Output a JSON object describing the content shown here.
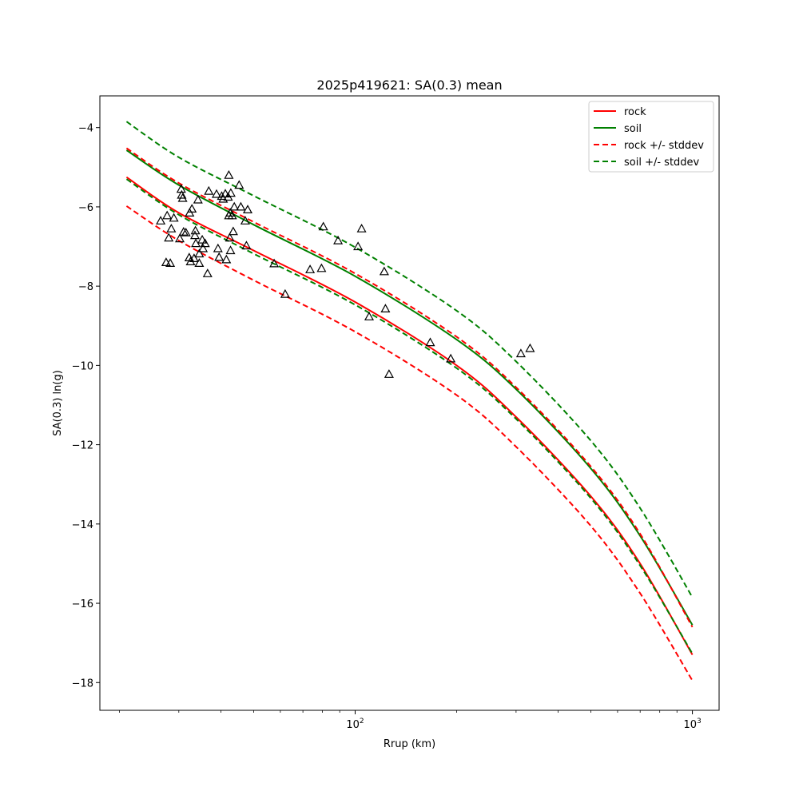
{
  "chart_data": {
    "type": "line",
    "title": "2025p419621: SA(0.3) mean",
    "xlabel": "Rrup (km)",
    "ylabel": "SA(0.3) ln(g)",
    "xscale": "log",
    "xlim": [
      17.5,
      1200
    ],
    "ylim": [
      -18.7,
      -3.2
    ],
    "x_ticks": [
      {
        "value": 100,
        "base": "10",
        "exp": "2"
      },
      {
        "value": 1000,
        "base": "10",
        "exp": "3"
      }
    ],
    "y_ticks": [
      {
        "value": -4,
        "label": "−4"
      },
      {
        "value": -6,
        "label": "−6"
      },
      {
        "value": -8,
        "label": "−8"
      },
      {
        "value": -10,
        "label": "−10"
      },
      {
        "value": -12,
        "label": "−12"
      },
      {
        "value": -14,
        "label": "−14"
      },
      {
        "value": -16,
        "label": "−16"
      },
      {
        "value": -18,
        "label": "−18"
      }
    ],
    "grid": false,
    "legend_position": "top-right",
    "series": [
      {
        "name": "rock",
        "color": "#ff0000",
        "dash": "solid",
        "x": [
          21,
          30,
          50,
          100,
          200,
          300,
          500,
          700,
          1000
        ],
        "y": [
          -5.25,
          -6.15,
          -7.1,
          -8.4,
          -10.0,
          -11.3,
          -13.3,
          -15.0,
          -17.3
        ]
      },
      {
        "name": "soil",
        "color": "#008000",
        "dash": "solid",
        "x": [
          21,
          30,
          50,
          100,
          200,
          300,
          500,
          700,
          1000
        ],
        "y": [
          -4.57,
          -5.45,
          -6.45,
          -7.75,
          -9.35,
          -10.6,
          -12.6,
          -14.3,
          -16.55
        ]
      },
      {
        "name": "rock +/- stddev",
        "color": "#ff0000",
        "dash": "dashed",
        "x": [
          21,
          30,
          50,
          100,
          200,
          300,
          500,
          700,
          1000
        ],
        "y": [
          -4.52,
          -5.4,
          -6.38,
          -7.68,
          -9.28,
          -10.55,
          -12.55,
          -14.25,
          -16.6
        ]
      },
      {
        "name": "",
        "color": "#ff0000",
        "dash": "dashed",
        "x": [
          21,
          30,
          50,
          100,
          200,
          300,
          500,
          700,
          1000
        ],
        "y": [
          -5.98,
          -6.85,
          -7.85,
          -9.15,
          -10.75,
          -12.05,
          -14.05,
          -15.75,
          -17.95
        ]
      },
      {
        "name": "soil +/- stddev",
        "color": "#008000",
        "dash": "dashed",
        "x": [
          21,
          30,
          50,
          100,
          200,
          300,
          500,
          700,
          1000
        ],
        "y": [
          -3.85,
          -4.75,
          -5.72,
          -7.02,
          -8.62,
          -9.9,
          -11.9,
          -13.6,
          -15.85
        ]
      },
      {
        "name": "",
        "color": "#008000",
        "dash": "dashed",
        "x": [
          21,
          30,
          50,
          100,
          200,
          300,
          500,
          700,
          1000
        ],
        "y": [
          -5.3,
          -6.2,
          -7.18,
          -8.47,
          -10.07,
          -11.35,
          -13.35,
          -15.05,
          -17.27
        ]
      }
    ],
    "observations": {
      "marker": "triangle",
      "color": "#000000",
      "points": [
        [
          26.5,
          -6.35
        ],
        [
          27.5,
          -7.4
        ],
        [
          27.7,
          -6.22
        ],
        [
          28,
          -6.78
        ],
        [
          28.3,
          -7.42
        ],
        [
          28.5,
          -6.55
        ],
        [
          29,
          -6.28
        ],
        [
          30.2,
          -6.8
        ],
        [
          30.5,
          -5.55
        ],
        [
          30.6,
          -5.7
        ],
        [
          30.8,
          -5.78
        ],
        [
          31,
          -6.63
        ],
        [
          31.5,
          -6.65
        ],
        [
          32.2,
          -7.28
        ],
        [
          32.3,
          -6.15
        ],
        [
          32.5,
          -7.38
        ],
        [
          32.8,
          -6.05
        ],
        [
          33.3,
          -7.3
        ],
        [
          33.5,
          -6.72
        ],
        [
          33.6,
          -6.6
        ],
        [
          33.7,
          -6.92
        ],
        [
          34.2,
          -5.82
        ],
        [
          34.5,
          -7.42
        ],
        [
          34.5,
          -7.18
        ],
        [
          35.2,
          -6.83
        ],
        [
          35.4,
          -7.05
        ],
        [
          35.9,
          -6.92
        ],
        [
          36.5,
          -7.68
        ],
        [
          36.8,
          -5.6
        ],
        [
          38.8,
          -5.68
        ],
        [
          39.2,
          -7.05
        ],
        [
          39.5,
          -7.27
        ],
        [
          40.2,
          -5.73
        ],
        [
          40.6,
          -5.8
        ],
        [
          41.2,
          -5.67
        ],
        [
          41.5,
          -7.33
        ],
        [
          42,
          -5.75
        ],
        [
          42.2,
          -6.22
        ],
        [
          42.2,
          -5.2
        ],
        [
          42.5,
          -6.78
        ],
        [
          42.6,
          -6.15
        ],
        [
          42.7,
          -7.1
        ],
        [
          42.8,
          -5.65
        ],
        [
          43.2,
          -6.22
        ],
        [
          43.5,
          -6.62
        ],
        [
          43.8,
          -6.0
        ],
        [
          45.3,
          -5.45
        ],
        [
          45.8,
          -6.0
        ],
        [
          47.2,
          -6.35
        ],
        [
          47.6,
          -6.98
        ],
        [
          48,
          -6.07
        ],
        [
          57.5,
          -7.43
        ],
        [
          62,
          -8.2
        ],
        [
          73.5,
          -7.58
        ],
        [
          79.5,
          -7.55
        ],
        [
          80.5,
          -6.5
        ],
        [
          89,
          -6.85
        ],
        [
          102,
          -7.0
        ],
        [
          104.5,
          -6.55
        ],
        [
          110,
          -8.77
        ],
        [
          122,
          -7.63
        ],
        [
          123,
          -8.57
        ],
        [
          126,
          -10.22
        ],
        [
          167,
          -9.42
        ],
        [
          192,
          -9.83
        ],
        [
          310,
          -9.7
        ],
        [
          330,
          -9.57
        ]
      ]
    }
  }
}
